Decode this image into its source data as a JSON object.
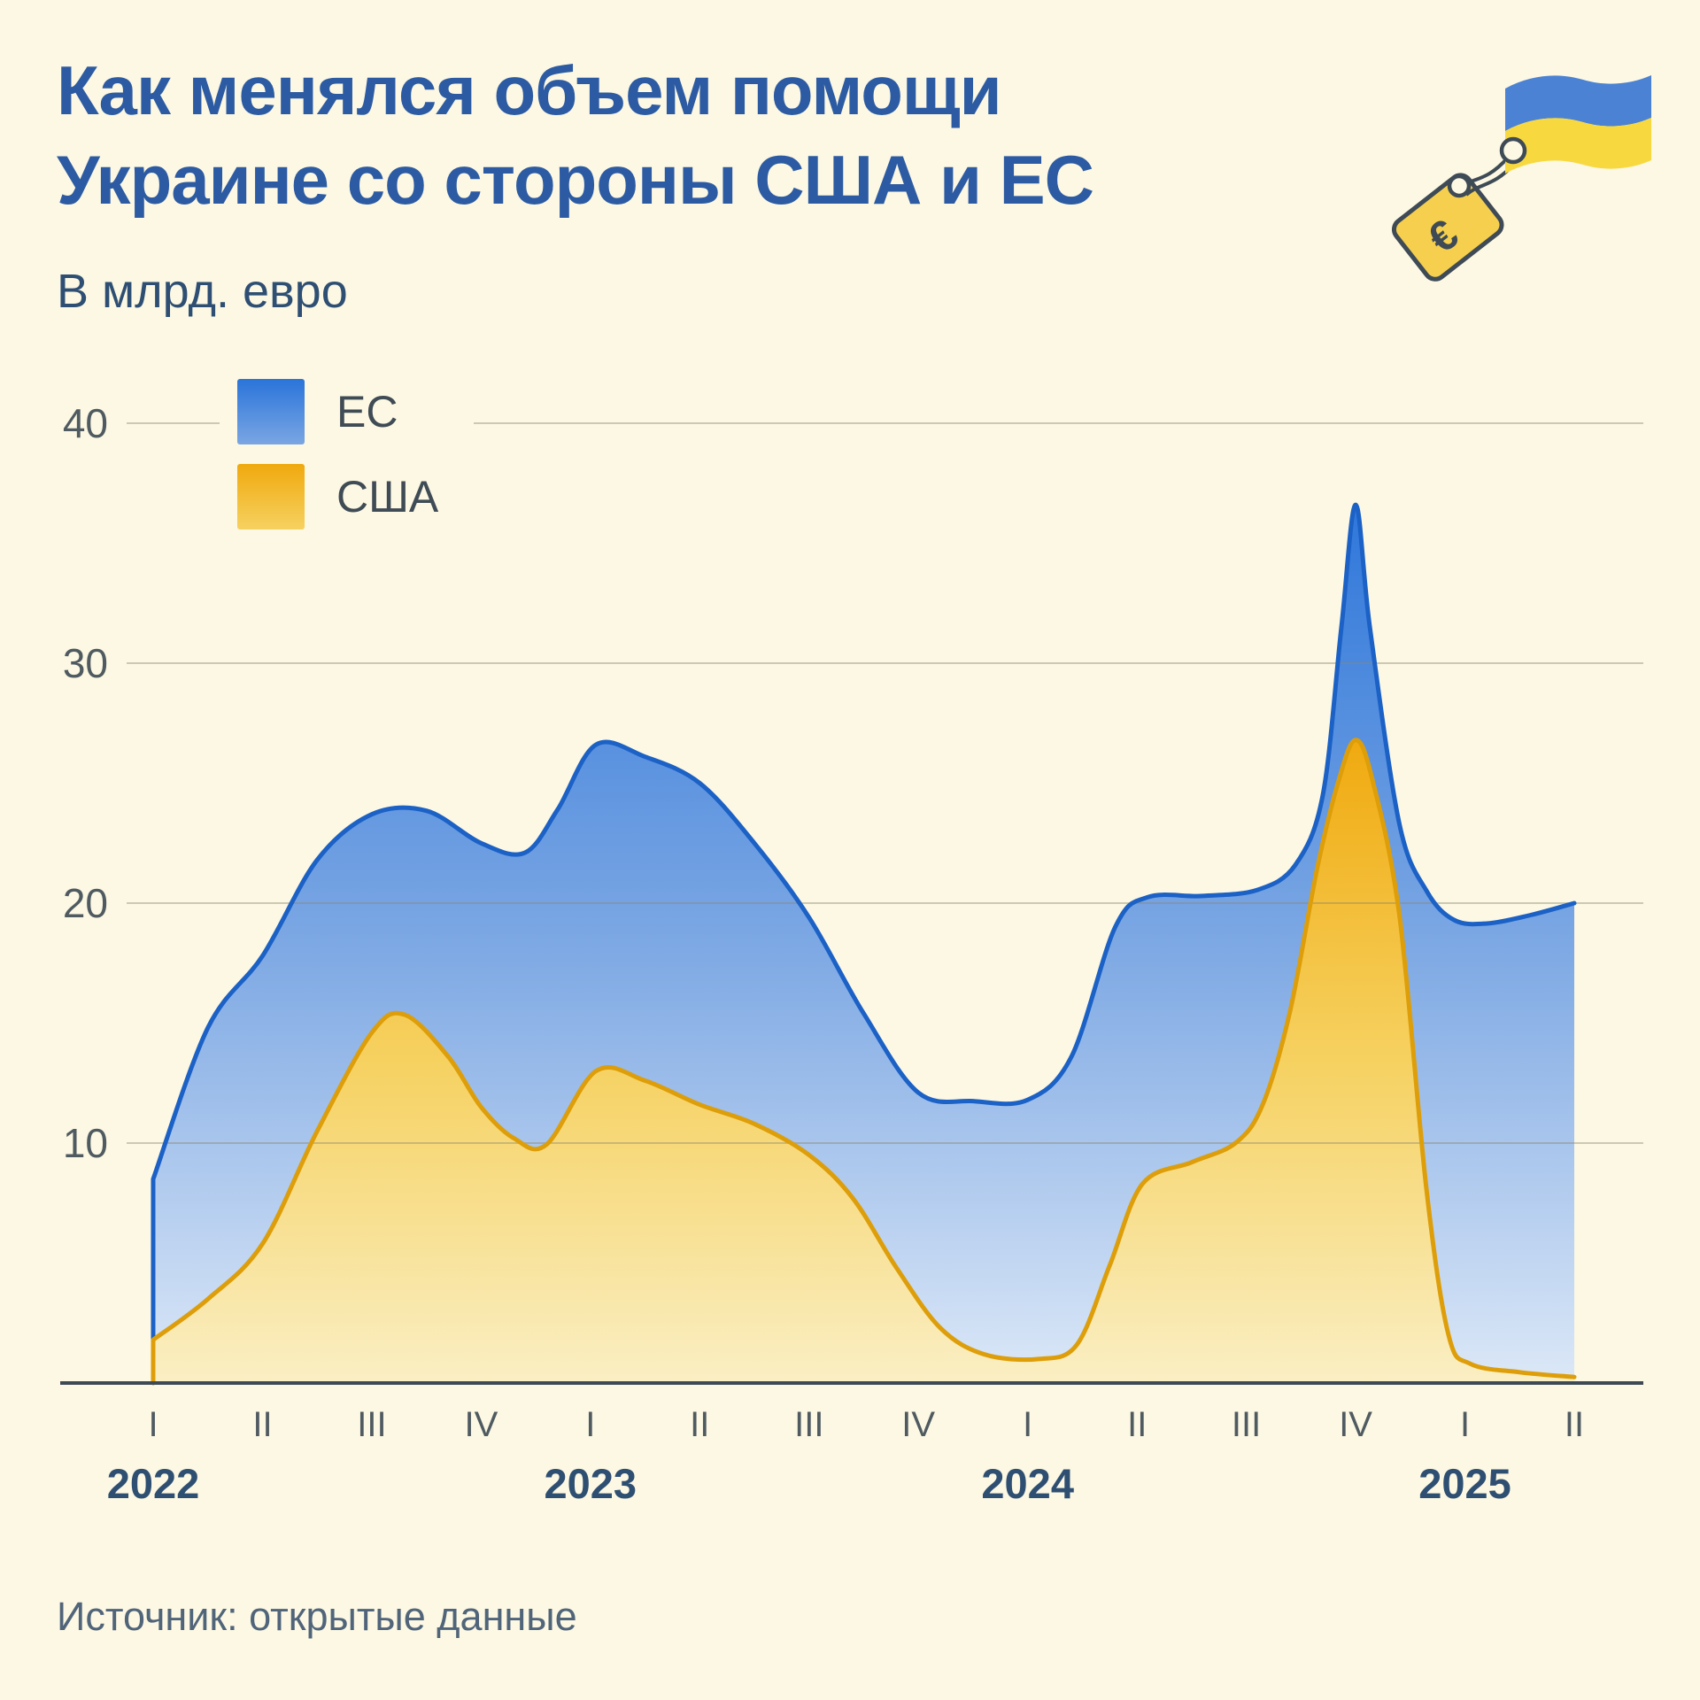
{
  "header": {
    "title_line1": "Как менялся объем помощи",
    "title_line2": "Украине со стороны США и ЕС",
    "subtitle": "В млрд. евро"
  },
  "legend": {
    "items": [
      {
        "label": "ЕС",
        "series": "eu"
      },
      {
        "label": "США",
        "series": "us"
      }
    ]
  },
  "source_text": "Источник: открытые данные",
  "icon": {
    "name": "ukraine-flag-with-euro-price-tag",
    "euro_glyph": "€"
  },
  "colors": {
    "background": "#fcf8e3",
    "title": "#2d5ba3",
    "subtitle": "#2e4f73",
    "legend_label": "#3f4b55",
    "tick_label": "#4f5a61",
    "year_label": "#2f4f72",
    "source": "#50647a",
    "grid": "#8c866e",
    "axis": "#3d4954",
    "eu_stroke": "#1b61c6",
    "eu_fill_top": "#2a74da",
    "eu_fill_mid": "#7aa6e3",
    "eu_fill_bottom": "#dce8f7",
    "us_stroke": "#dd9e0a",
    "us_fill_top": "#f0a90e",
    "us_fill_mid": "#f6d160",
    "us_fill_bottom": "#faefc4",
    "flag_blue": "#4b82d3",
    "flag_yellow": "#f7d93f",
    "tag_fill": "#f6cf4e",
    "icon_outline": "#3e4a55"
  },
  "chart_data": {
    "type": "area",
    "title": "Как менялся объем помощи Украине со стороны США и ЕС",
    "ylabel": "В млрд. евро",
    "unit": "млрд евро",
    "ylim": [
      0,
      42
    ],
    "y_ticks": [
      10,
      20,
      30,
      40
    ],
    "grid": "horizontal",
    "legend_position": "top-left",
    "x_quarter_labels": [
      "I",
      "II",
      "III",
      "IV",
      "I",
      "II",
      "III",
      "IV",
      "I",
      "II",
      "III",
      "IV",
      "I",
      "II"
    ],
    "x_year_labels": [
      {
        "label": "2022",
        "quarter_index": 0
      },
      {
        "label": "2023",
        "quarter_index": 4
      },
      {
        "label": "2024",
        "quarter_index": 8
      },
      {
        "label": "2025",
        "quarter_index": 12
      }
    ],
    "series": [
      {
        "id": "eu",
        "name": "ЕС",
        "quarterly_values": [
          8.5,
          17.0,
          23.8,
          22.5,
          26.6,
          25.0,
          19.4,
          12.0,
          11.8,
          20.2,
          20.5,
          36.7,
          19.2,
          20.0
        ],
        "shape_points": [
          [
            0,
            8.5
          ],
          [
            0.5,
            14.8
          ],
          [
            1,
            17.8
          ],
          [
            1.5,
            21.8
          ],
          [
            2,
            23.7
          ],
          [
            2.5,
            23.85
          ],
          [
            3,
            22.5
          ],
          [
            3.4,
            22.1
          ],
          [
            3.7,
            23.9
          ],
          [
            4.05,
            26.6
          ],
          [
            4.5,
            26.1
          ],
          [
            5,
            25.0
          ],
          [
            5.5,
            22.5
          ],
          [
            6,
            19.4
          ],
          [
            6.5,
            15.4
          ],
          [
            7,
            12.1
          ],
          [
            7.5,
            11.75
          ],
          [
            8,
            11.8
          ],
          [
            8.4,
            13.6
          ],
          [
            8.8,
            19.0
          ],
          [
            9.1,
            20.25
          ],
          [
            9.6,
            20.3
          ],
          [
            10.1,
            20.55
          ],
          [
            10.45,
            21.6
          ],
          [
            10.7,
            24.5
          ],
          [
            10.87,
            31.5
          ],
          [
            11,
            36.6
          ],
          [
            11.13,
            31.5
          ],
          [
            11.4,
            23.3
          ],
          [
            11.65,
            20.5
          ],
          [
            11.9,
            19.3
          ],
          [
            12.2,
            19.15
          ],
          [
            12.6,
            19.5
          ],
          [
            13,
            20.0
          ]
        ]
      },
      {
        "id": "us",
        "name": "США",
        "quarterly_values": [
          1.8,
          5.4,
          14.6,
          11.5,
          13.0,
          11.6,
          9.5,
          2.3,
          1.0,
          8.3,
          10.9,
          26.8,
          0.8,
          0.3
        ],
        "shape_points": [
          [
            0,
            1.8
          ],
          [
            0.5,
            3.5
          ],
          [
            1,
            5.8
          ],
          [
            1.5,
            10.5
          ],
          [
            2,
            14.6
          ],
          [
            2.3,
            15.35
          ],
          [
            2.7,
            13.6
          ],
          [
            3,
            11.5
          ],
          [
            3.3,
            10.2
          ],
          [
            3.6,
            9.95
          ],
          [
            4.05,
            13.0
          ],
          [
            4.5,
            12.6
          ],
          [
            5,
            11.6
          ],
          [
            5.5,
            10.8
          ],
          [
            6,
            9.5
          ],
          [
            6.4,
            7.7
          ],
          [
            6.8,
            4.8
          ],
          [
            7.2,
            2.3
          ],
          [
            7.6,
            1.2
          ],
          [
            8.1,
            1.0
          ],
          [
            8.45,
            1.6
          ],
          [
            8.75,
            4.9
          ],
          [
            9.05,
            8.3
          ],
          [
            9.5,
            9.2
          ],
          [
            9.9,
            10.0
          ],
          [
            10.15,
            11.6
          ],
          [
            10.4,
            15.5
          ],
          [
            10.65,
            21.5
          ],
          [
            10.85,
            25.2
          ],
          [
            11,
            26.8
          ],
          [
            11.15,
            25.2
          ],
          [
            11.4,
            19.5
          ],
          [
            11.65,
            8.0
          ],
          [
            11.85,
            2.0
          ],
          [
            12.05,
            0.8
          ],
          [
            12.5,
            0.45
          ],
          [
            13,
            0.25
          ]
        ]
      }
    ]
  }
}
